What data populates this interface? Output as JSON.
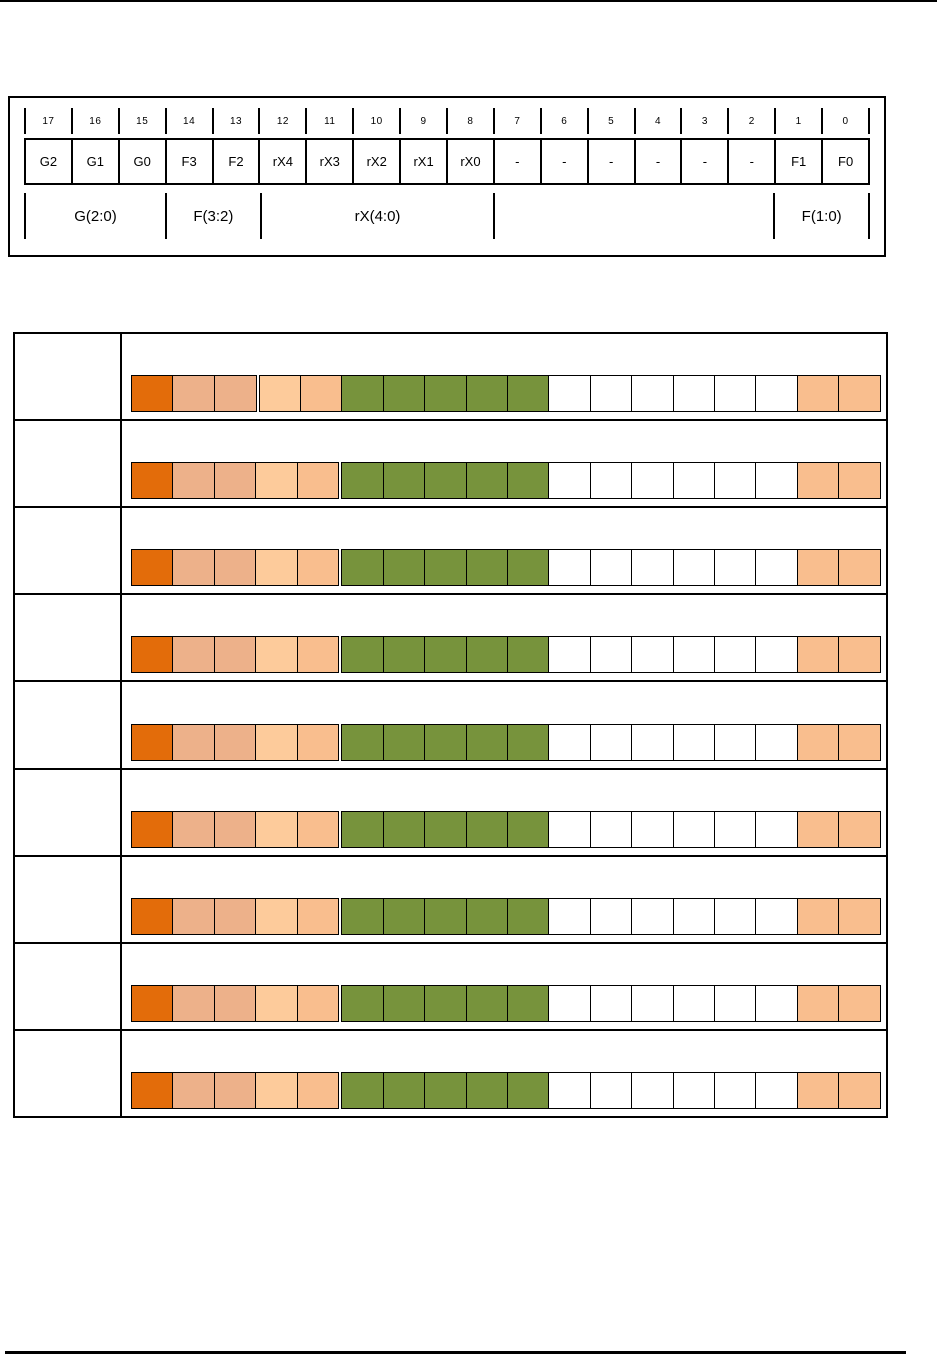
{
  "page": {
    "background": "#FFFFFF",
    "top_rule_color": "#000000",
    "footer_rule_color": "#000000"
  },
  "bitfield_diagram": {
    "bit_numbers": [
      "17",
      "16",
      "15",
      "14",
      "13",
      "12",
      "11",
      "10",
      "9",
      "8",
      "7",
      "6",
      "5",
      "4",
      "3",
      "2",
      "1",
      "0"
    ],
    "cells": [
      "G2",
      "G1",
      "G0",
      "F3",
      "F2",
      "rX4",
      "rX3",
      "rX2",
      "rX1",
      "rX0",
      "-",
      "-",
      "-",
      "-",
      "-",
      "-",
      "F1",
      "F0"
    ],
    "groups": [
      {
        "label": "G(2:0)",
        "span": 3
      },
      {
        "label": "F(3:2)",
        "span": 2
      },
      {
        "label": "rX(4:0)",
        "span": 5
      },
      {
        "label": "",
        "span": 6
      },
      {
        "label": "F(1:0)",
        "span": 2
      }
    ]
  },
  "encoding_table": {
    "rows": [
      {
        "label": "",
        "gap_before_cell": 3
      },
      {
        "label": "",
        "gap_before_cell": 5
      },
      {
        "label": "",
        "gap_before_cell": 5
      },
      {
        "label": "",
        "gap_before_cell": 5
      },
      {
        "label": "",
        "gap_before_cell": 5
      },
      {
        "label": "",
        "gap_before_cell": 5
      },
      {
        "label": "",
        "gap_before_cell": 5
      },
      {
        "label": "",
        "gap_before_cell": 5
      },
      {
        "label": "",
        "gap_before_cell": 5
      }
    ],
    "bar_cell_colors": [
      "#E36C0A",
      "#EDB18A",
      "#EDB18A",
      "#FDCB9B",
      "#F9BE8E",
      "#77933C",
      "#77933C",
      "#77933C",
      "#77933C",
      "#77933C",
      "#FFFFFF",
      "#FFFFFF",
      "#FFFFFF",
      "#FFFFFF",
      "#FFFFFF",
      "#FFFFFF",
      "#F9BE8E",
      "#F9BE8E"
    ],
    "palette": {
      "dark_orange": "#E36C0A",
      "tan": "#EDB18A",
      "light_peach": "#FDCB9B",
      "peach": "#F9BE8E",
      "green": "#77933C",
      "white": "#FFFFFF"
    }
  }
}
